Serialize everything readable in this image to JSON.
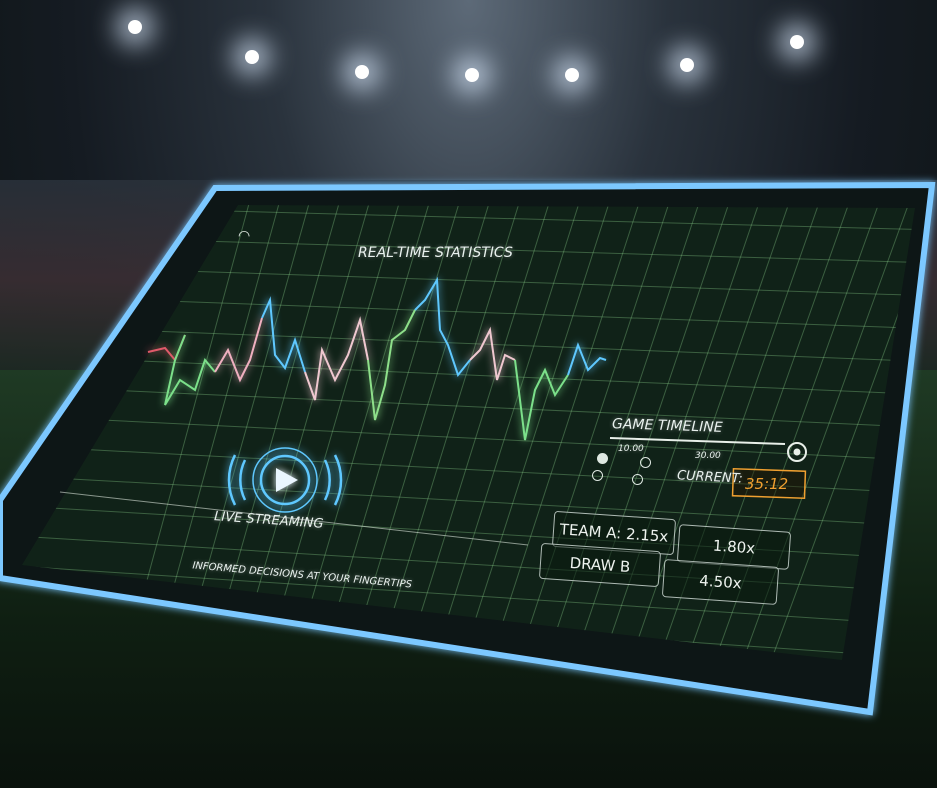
{
  "header": {
    "title": "REAL-TIME STATISTICS",
    "icon": "wifi-icon"
  },
  "stream": {
    "label": "LIVE STREAMING",
    "icon": "play-icon",
    "tagline": "INFORMED DECISIONS AT YOUR FINGERTIPS"
  },
  "timeline": {
    "title": "GAME TIMELINE",
    "mark_start": "10.00",
    "mark_end": "30.00",
    "current_label": "CURRENT:",
    "current_value": "35:12"
  },
  "odds": [
    {
      "label": "TEAM A: 2.15x"
    },
    {
      "label": "1.80x"
    },
    {
      "label": "DRAW B"
    },
    {
      "label": "4.50x"
    }
  ],
  "colors": {
    "accent": "#5fc8ff",
    "current": "#f0a030",
    "grid": "#6fbf6a"
  }
}
